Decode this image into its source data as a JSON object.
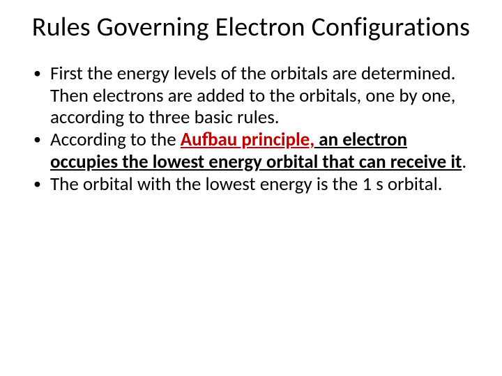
{
  "title": "Rules Governing Electron Configurations",
  "bullets": [
    {
      "text_full": "First the energy levels of the orbitals are determined.  Then electrons are added to the orbitals, one by one, according to three basic rules."
    },
    {
      "prefix": "According to the ",
      "term": "Aufbau principle,",
      "emph": " an electron occupies the lowest energy orbital that can receive it",
      "suffix": "."
    },
    {
      "text_full": "The orbital with the lowest energy is the 1 s orbital."
    }
  ],
  "colors": {
    "background": "#ffffff",
    "text": "#000000",
    "term": "#c00000"
  },
  "typography": {
    "title_fontsize": 38,
    "body_fontsize": 27,
    "font_family": "Calibri"
  }
}
